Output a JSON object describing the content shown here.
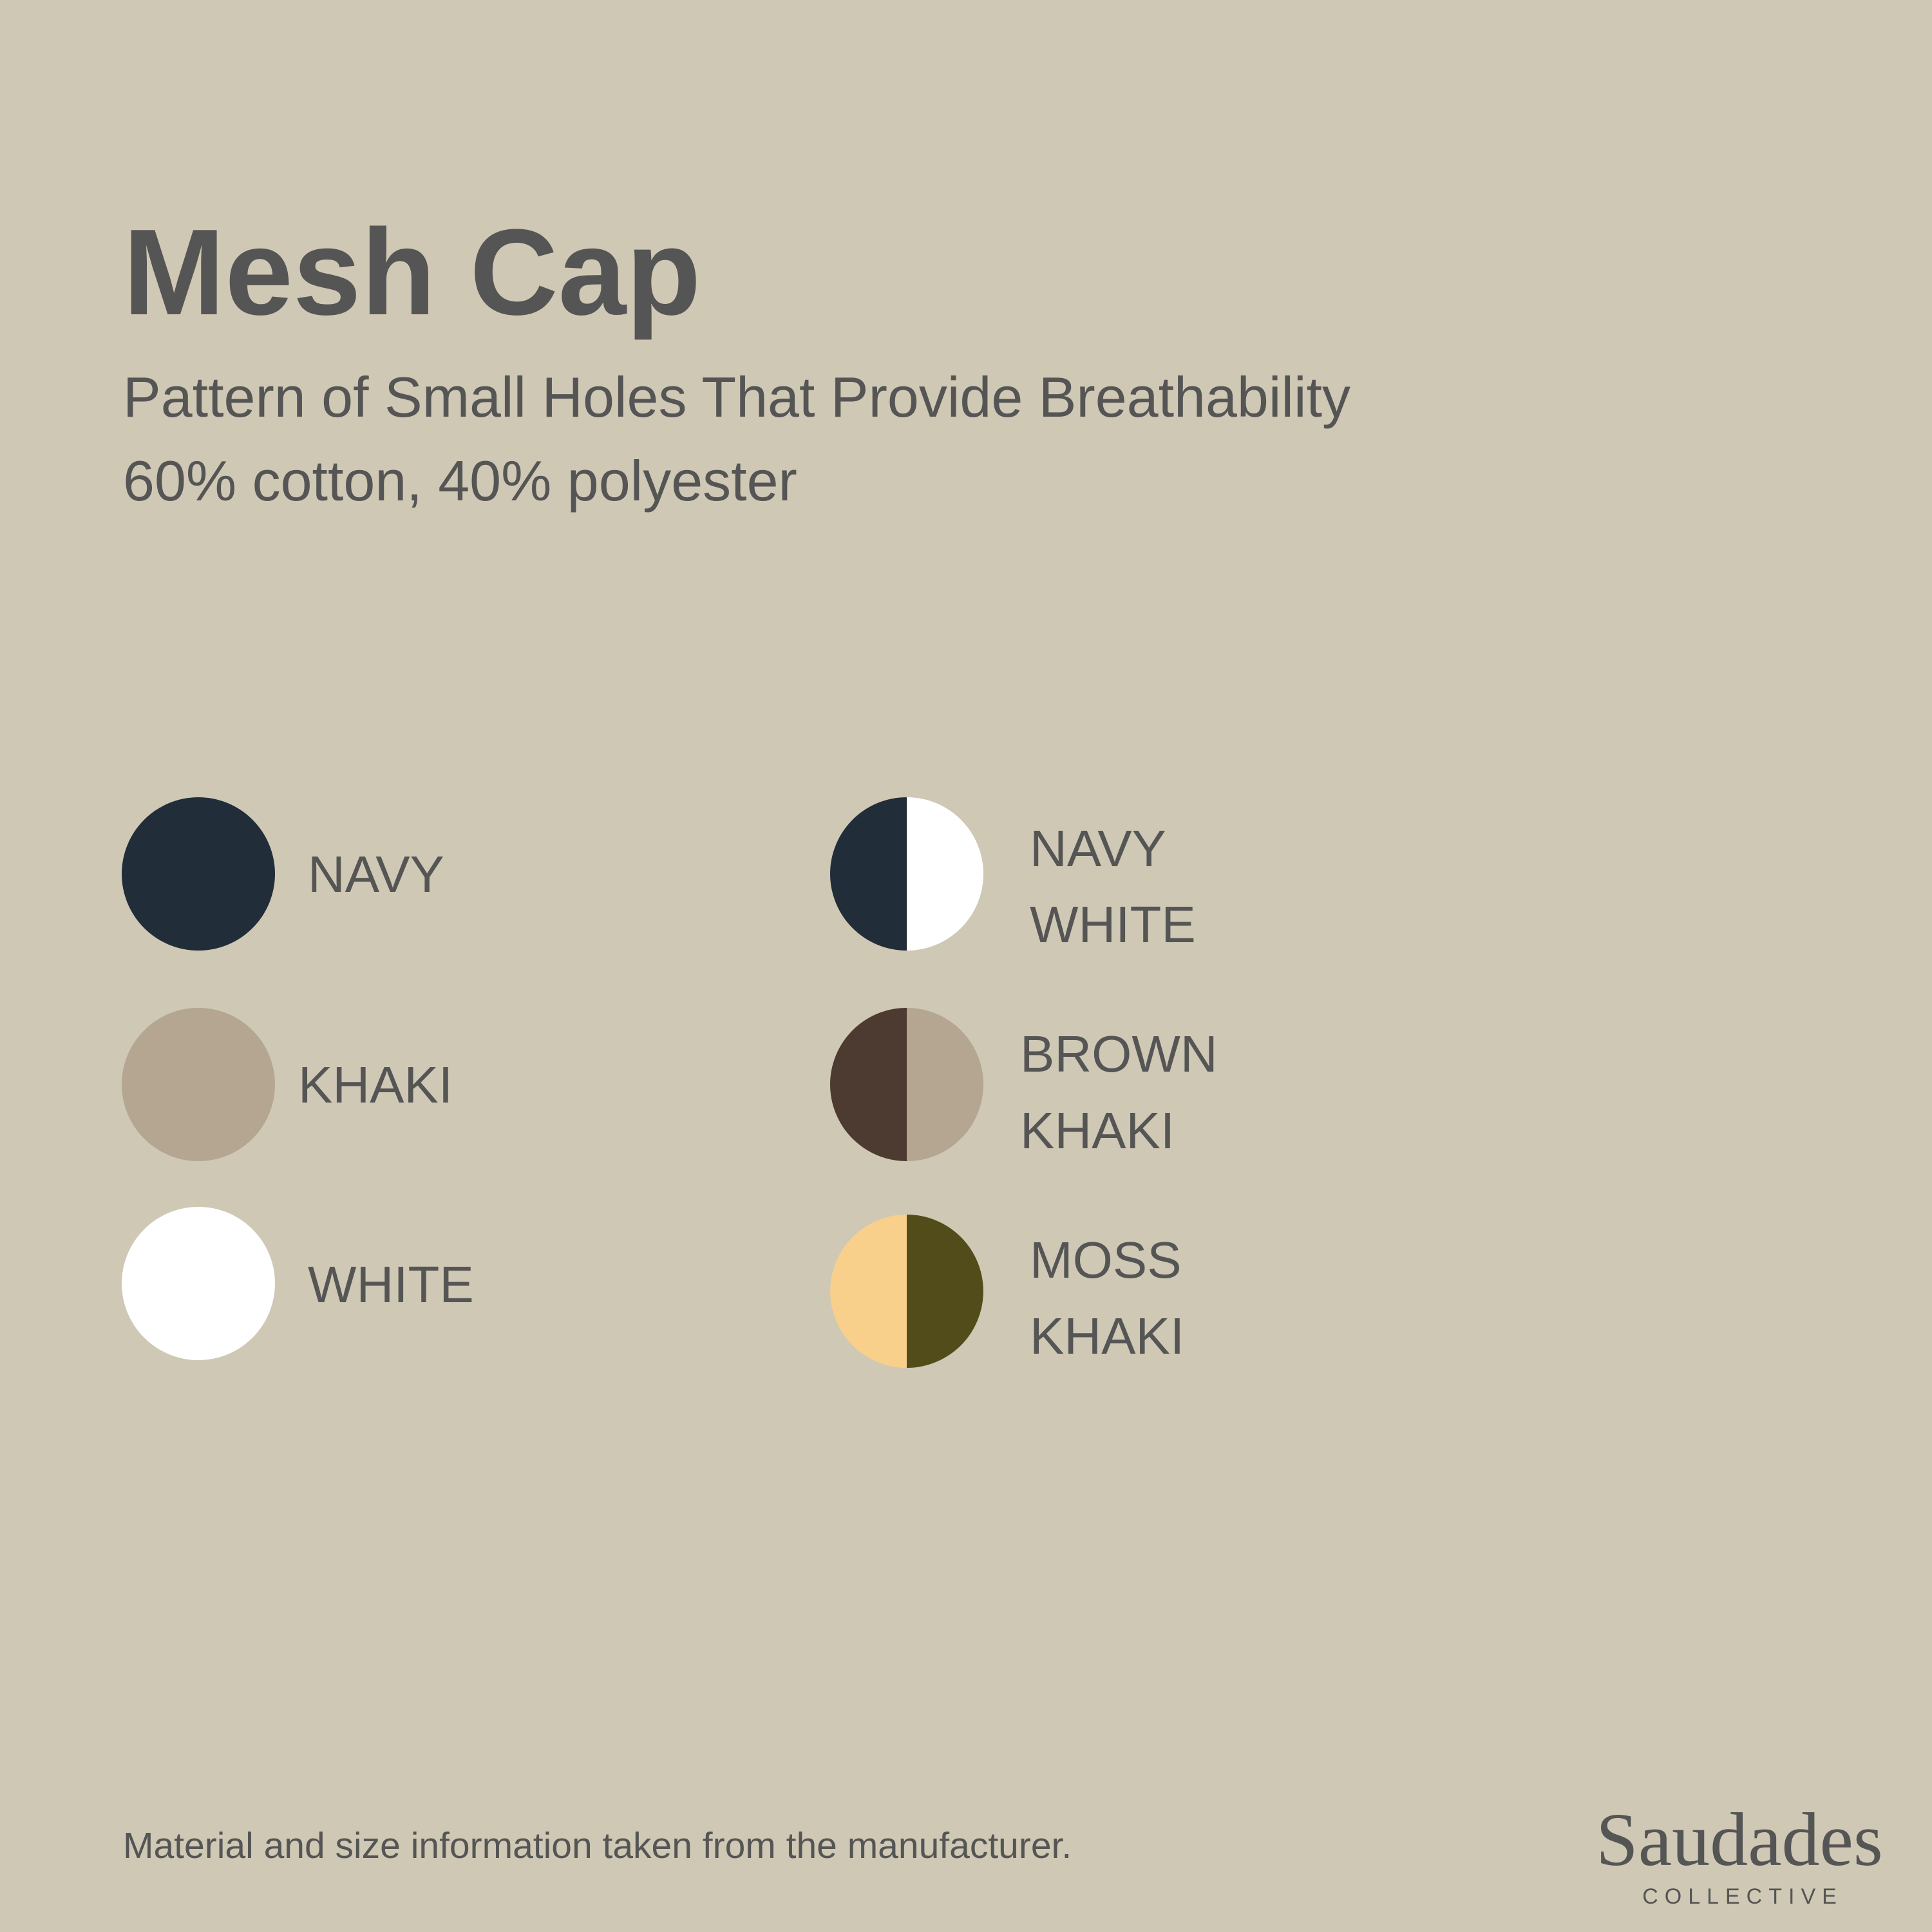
{
  "header": {
    "title": "Mesh Cap",
    "subtitle": "Pattern of Small Holes That Provide Breathability",
    "material": "60% cotton, 40% polyester"
  },
  "colors": [
    {
      "label": [
        "NAVY"
      ]
    },
    {
      "label": [
        "KHAKI"
      ]
    },
    {
      "label": [
        "WHITE"
      ]
    },
    {
      "label": [
        "NAVY",
        "WHITE"
      ]
    },
    {
      "label": [
        "BROWN",
        "KHAKI"
      ]
    },
    {
      "label": [
        "MOSS",
        "KHAKI"
      ]
    }
  ],
  "footer": {
    "note": "Material and size information taken from the manufacturer.",
    "brand": "Saudades",
    "brand_tagline": "COLLECTIVE"
  }
}
